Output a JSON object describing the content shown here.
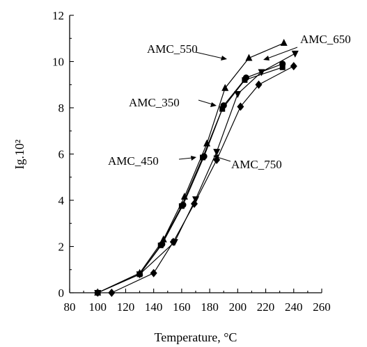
{
  "chart_data": {
    "type": "line",
    "xlabel": "Temperature, °C",
    "ylabel": "Ig.10²",
    "xlim": [
      80,
      260
    ],
    "ylim": [
      0,
      12
    ],
    "x_ticks": [
      80,
      100,
      120,
      140,
      160,
      180,
      200,
      220,
      240,
      260
    ],
    "y_ticks": [
      0,
      2,
      4,
      6,
      8,
      10,
      12
    ],
    "grid": false,
    "series": [
      {
        "name": "AMC_350",
        "marker": "circle",
        "x": [
          100,
          130,
          146,
          161,
          176,
          190,
          206,
          232
        ],
        "y": [
          0.0,
          0.8,
          2.1,
          3.8,
          5.9,
          8.1,
          9.3,
          9.9
        ]
      },
      {
        "name": "AMC_450",
        "marker": "square",
        "x": [
          100,
          130,
          145,
          160,
          175,
          189,
          205,
          232
        ],
        "y": [
          0.0,
          0.8,
          2.05,
          3.75,
          5.85,
          7.95,
          9.2,
          9.75
        ]
      },
      {
        "name": "AMC_550",
        "marker": "triangle-up",
        "x": [
          100,
          130,
          147,
          162,
          178,
          191,
          208,
          233
        ],
        "y": [
          0.0,
          0.85,
          2.3,
          4.15,
          6.45,
          8.85,
          10.15,
          10.8
        ]
      },
      {
        "name": "AMC_650",
        "marker": "triangle-down",
        "x": [
          100,
          130,
          155,
          170,
          185,
          200,
          217,
          241
        ],
        "y": [
          0.0,
          0.8,
          2.2,
          4.05,
          6.1,
          8.6,
          9.55,
          10.35
        ]
      },
      {
        "name": "AMC_750",
        "marker": "diamond",
        "x": [
          110,
          140,
          154,
          169,
          185,
          202,
          215,
          240
        ],
        "y": [
          0.0,
          0.85,
          2.2,
          3.85,
          5.75,
          8.05,
          9.0,
          9.8
        ]
      }
    ]
  }
}
